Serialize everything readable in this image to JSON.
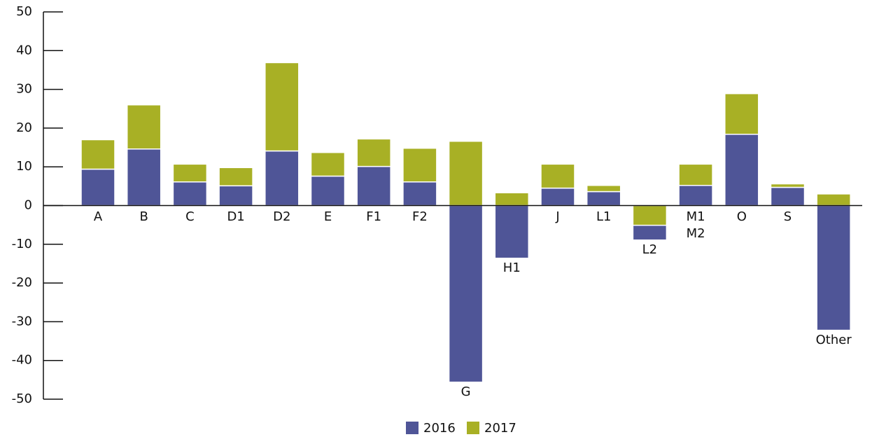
{
  "chart_data": {
    "type": "bar",
    "stacked": true,
    "categories": [
      "A",
      "B",
      "C",
      "D1",
      "D2",
      "E",
      "F1",
      "F2",
      "G",
      "H1",
      "J",
      "L1",
      "L2",
      "M1\nM2",
      "O",
      "S",
      "Other"
    ],
    "series": [
      {
        "name": "2016",
        "color": "#4f5597",
        "values": [
          9.4,
          14.6,
          6.1,
          5.1,
          14.1,
          7.6,
          10.1,
          6.1,
          -45.6,
          -13.6,
          4.5,
          3.6,
          -3.8,
          5.2,
          18.4,
          4.7,
          -32.2
        ]
      },
      {
        "name": "2017",
        "color": "#a8b025",
        "values": [
          7.6,
          11.4,
          4.6,
          4.7,
          22.8,
          6.1,
          7.1,
          8.7,
          16.6,
          3.3,
          6.2,
          1.6,
          -5.1,
          5.5,
          10.5,
          0.9,
          3.0
        ]
      }
    ],
    "ylim": [
      -50,
      50
    ],
    "yticks": [
      -50,
      -40,
      -30,
      -20,
      -10,
      0,
      10,
      20,
      30,
      40,
      50
    ],
    "legend": "bottom"
  }
}
